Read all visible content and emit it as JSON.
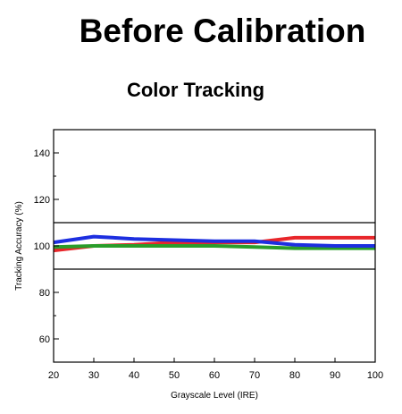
{
  "title": "Before Calibration",
  "subtitle": "Color Tracking",
  "chart_data": {
    "type": "line",
    "xlabel": "Grayscale Level (IRE)",
    "ylabel": "Tracking Accuracy (%)",
    "xlim": [
      20,
      100
    ],
    "ylim": [
      50,
      150
    ],
    "xticks": [
      20,
      30,
      40,
      50,
      60,
      70,
      80,
      90,
      100
    ],
    "yticks": [
      60,
      80,
      100,
      120,
      140
    ],
    "reference_lines": [
      90,
      110
    ],
    "x": [
      20,
      30,
      40,
      50,
      60,
      70,
      80,
      90,
      100
    ],
    "series": [
      {
        "color": "#e8262a",
        "values": [
          98,
          100,
          100.5,
          101.5,
          101.5,
          101.5,
          103.5,
          103.5,
          103.5
        ]
      },
      {
        "color": "#2a9d2a",
        "values": [
          99.5,
          100,
          100,
          100,
          100,
          99.5,
          99,
          99,
          99
        ]
      },
      {
        "color": "#1d2fe0",
        "values": [
          101.5,
          104,
          103,
          102.5,
          102,
          102,
          100.5,
          100,
          100
        ]
      }
    ],
    "grid": false
  }
}
